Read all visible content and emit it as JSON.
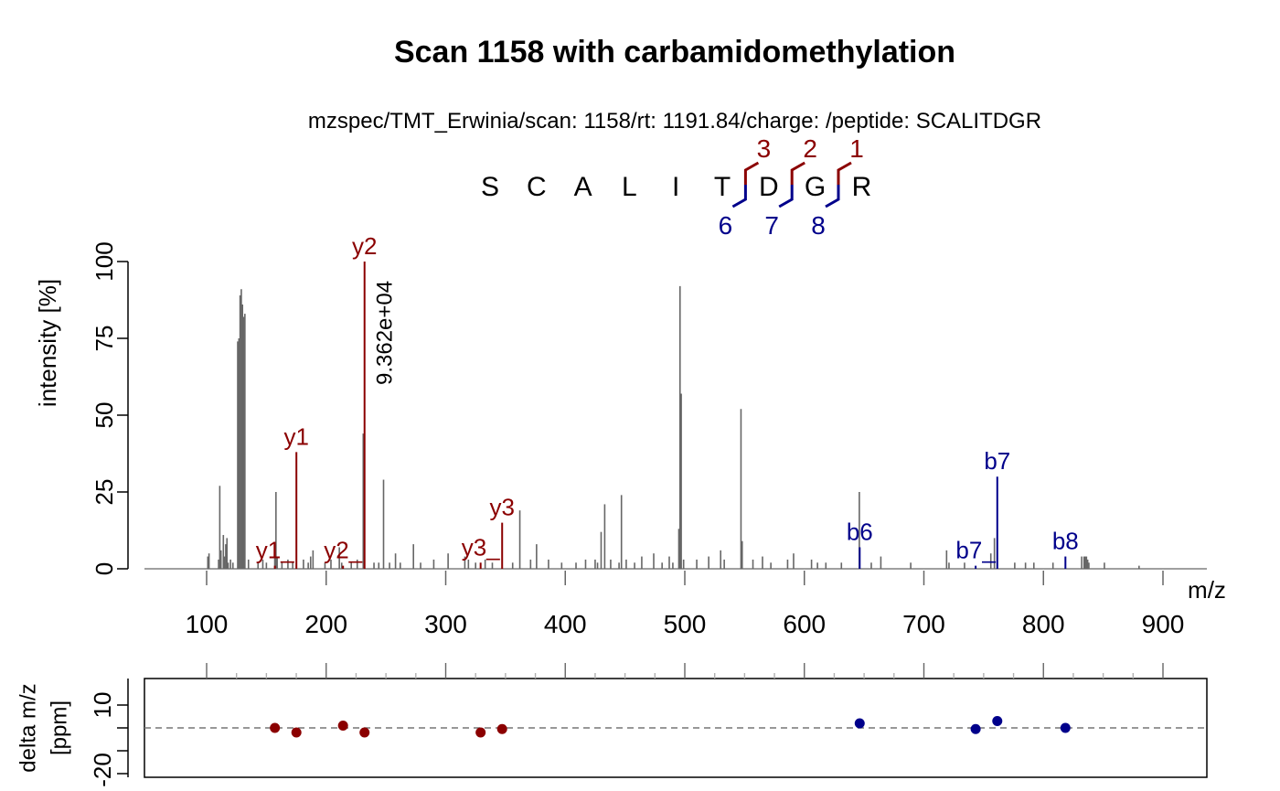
{
  "title": "Scan 1158 with carbamidomethylation",
  "subtitle": "mzspec/TMT_Erwinia/scan: 1158/rt: 1191.84/charge: /peptide: SCALITDGR",
  "peptide": {
    "residues": [
      "S",
      "C",
      "A",
      "L",
      "I",
      "T",
      "D",
      "G",
      "R"
    ],
    "y_fragments": [
      "3",
      "2",
      "1"
    ],
    "b_fragments": [
      "6",
      "7",
      "8"
    ]
  },
  "colors": {
    "y_ion": "#8B0000",
    "b_ion": "#00008B",
    "peak": "#666666",
    "axis": "#000000"
  },
  "chart_data": [
    {
      "type": "bar",
      "title": "Scan 1158 with carbamidomethylation",
      "xlabel": "m/z",
      "ylabel": "intensity [%]",
      "xlim": [
        50,
        935
      ],
      "ylim": [
        0,
        100
      ],
      "xticks": [
        "100",
        "200",
        "300",
        "400",
        "500",
        "600",
        "700",
        "800",
        "900"
      ],
      "yticks": [
        "0",
        "25",
        "50",
        "75",
        "100"
      ],
      "max_intensity_label": "9.362e+04",
      "peaks": [
        [
          101,
          4
        ],
        [
          102,
          5
        ],
        [
          110,
          3
        ],
        [
          111,
          27
        ],
        [
          112,
          6
        ],
        [
          114,
          11
        ],
        [
          115,
          4
        ],
        [
          116,
          8
        ],
        [
          117,
          10
        ],
        [
          118,
          2
        ],
        [
          120,
          3
        ],
        [
          122,
          2
        ],
        [
          126,
          74
        ],
        [
          127,
          75
        ],
        [
          128,
          89
        ],
        [
          129,
          91
        ],
        [
          130,
          86
        ],
        [
          131,
          82
        ],
        [
          132,
          83
        ],
        [
          135,
          3
        ],
        [
          143,
          2
        ],
        [
          147,
          3
        ],
        [
          150,
          2
        ],
        [
          157,
          5
        ],
        [
          158,
          25
        ],
        [
          159,
          4
        ],
        [
          163,
          2
        ],
        [
          168,
          3
        ],
        [
          172,
          2
        ],
        [
          181,
          3
        ],
        [
          185,
          2
        ],
        [
          187,
          4
        ],
        [
          189,
          6
        ],
        [
          199,
          2
        ],
        [
          204,
          3
        ],
        [
          211,
          7
        ],
        [
          213,
          2
        ],
        [
          221,
          2
        ],
        [
          226,
          3
        ],
        [
          231,
          44
        ],
        [
          240,
          2
        ],
        [
          244,
          2
        ],
        [
          248,
          29
        ],
        [
          253,
          2
        ],
        [
          258,
          5
        ],
        [
          262,
          2
        ],
        [
          273,
          8
        ],
        [
          279,
          2
        ],
        [
          290,
          3
        ],
        [
          302,
          5
        ],
        [
          316,
          4
        ],
        [
          319,
          3
        ],
        [
          325,
          2
        ],
        [
          333,
          3
        ],
        [
          339,
          2
        ],
        [
          356,
          2
        ],
        [
          362,
          19
        ],
        [
          371,
          3
        ],
        [
          376,
          8
        ],
        [
          386,
          3
        ],
        [
          397,
          2
        ],
        [
          409,
          2
        ],
        [
          417,
          3
        ],
        [
          425,
          3
        ],
        [
          427,
          2
        ],
        [
          430,
          12
        ],
        [
          433,
          21
        ],
        [
          438,
          3
        ],
        [
          445,
          2
        ],
        [
          447,
          24
        ],
        [
          451,
          3
        ],
        [
          458,
          2
        ],
        [
          464,
          4
        ],
        [
          474,
          5
        ],
        [
          481,
          2
        ],
        [
          487,
          4
        ],
        [
          490,
          2
        ],
        [
          495,
          13
        ],
        [
          496,
          92
        ],
        [
          497,
          57
        ],
        [
          499,
          3
        ],
        [
          510,
          3
        ],
        [
          520,
          4
        ],
        [
          530,
          6
        ],
        [
          533,
          3
        ],
        [
          547,
          52
        ],
        [
          548,
          9
        ],
        [
          557,
          3
        ],
        [
          565,
          4
        ],
        [
          572,
          2
        ],
        [
          586,
          3
        ],
        [
          591,
          5
        ],
        [
          606,
          3
        ],
        [
          611,
          2
        ],
        [
          618,
          2
        ],
        [
          631,
          2
        ],
        [
          646,
          25
        ],
        [
          656,
          2
        ],
        [
          664,
          4
        ],
        [
          689,
          2
        ],
        [
          719,
          6
        ],
        [
          721,
          2
        ],
        [
          734,
          2
        ],
        [
          756,
          5
        ],
        [
          759,
          10
        ],
        [
          776,
          2
        ],
        [
          785,
          2
        ],
        [
          792,
          2
        ],
        [
          808,
          2
        ],
        [
          832,
          4
        ],
        [
          834,
          4
        ],
        [
          835,
          4
        ],
        [
          836,
          4
        ],
        [
          837,
          3
        ],
        [
          838,
          2
        ],
        [
          851,
          2
        ],
        [
          880,
          1
        ]
      ],
      "annotations": [
        {
          "label": "y1",
          "mz": 175.1,
          "intensity": 38,
          "ion": "y"
        },
        {
          "label": "y1_",
          "mz": 157.1,
          "intensity": 1,
          "ion": "y"
        },
        {
          "label": "y2",
          "mz": 232.1,
          "intensity": 100,
          "ion": "y"
        },
        {
          "label": "y2_",
          "mz": 214.1,
          "intensity": 1,
          "ion": "y"
        },
        {
          "label": "y3",
          "mz": 347.2,
          "intensity": 15,
          "ion": "y"
        },
        {
          "label": "y3_",
          "mz": 329.2,
          "intensity": 2,
          "ion": "y"
        },
        {
          "label": "b6",
          "mz": 646.3,
          "intensity": 7,
          "ion": "b"
        },
        {
          "label": "b7",
          "mz": 761.4,
          "intensity": 30,
          "ion": "b"
        },
        {
          "label": "b7_",
          "mz": 743.3,
          "intensity": 1,
          "ion": "b"
        },
        {
          "label": "b8",
          "mz": 818.4,
          "intensity": 4,
          "ion": "b"
        }
      ]
    },
    {
      "type": "scatter",
      "ylabel": "delta m/z\n[ppm]",
      "ylabel_lines": [
        "delta m/z",
        "[ppm]"
      ],
      "yticks": [
        "10",
        "-20"
      ],
      "ylim": [
        -27,
        23
      ],
      "reference_y": 0,
      "points": [
        {
          "mz": 157.1,
          "ppm": 0,
          "ion": "y"
        },
        {
          "mz": 175.1,
          "ppm": -2,
          "ion": "y"
        },
        {
          "mz": 214.1,
          "ppm": 1,
          "ion": "y"
        },
        {
          "mz": 232.1,
          "ppm": -2,
          "ion": "y"
        },
        {
          "mz": 329.2,
          "ppm": -2,
          "ion": "y"
        },
        {
          "mz": 347.2,
          "ppm": -0.5,
          "ion": "y"
        },
        {
          "mz": 646.3,
          "ppm": 2,
          "ion": "b"
        },
        {
          "mz": 743.3,
          "ppm": -0.5,
          "ion": "b"
        },
        {
          "mz": 761.4,
          "ppm": 3,
          "ion": "b"
        },
        {
          "mz": 818.4,
          "ppm": 0,
          "ion": "b"
        }
      ]
    }
  ]
}
